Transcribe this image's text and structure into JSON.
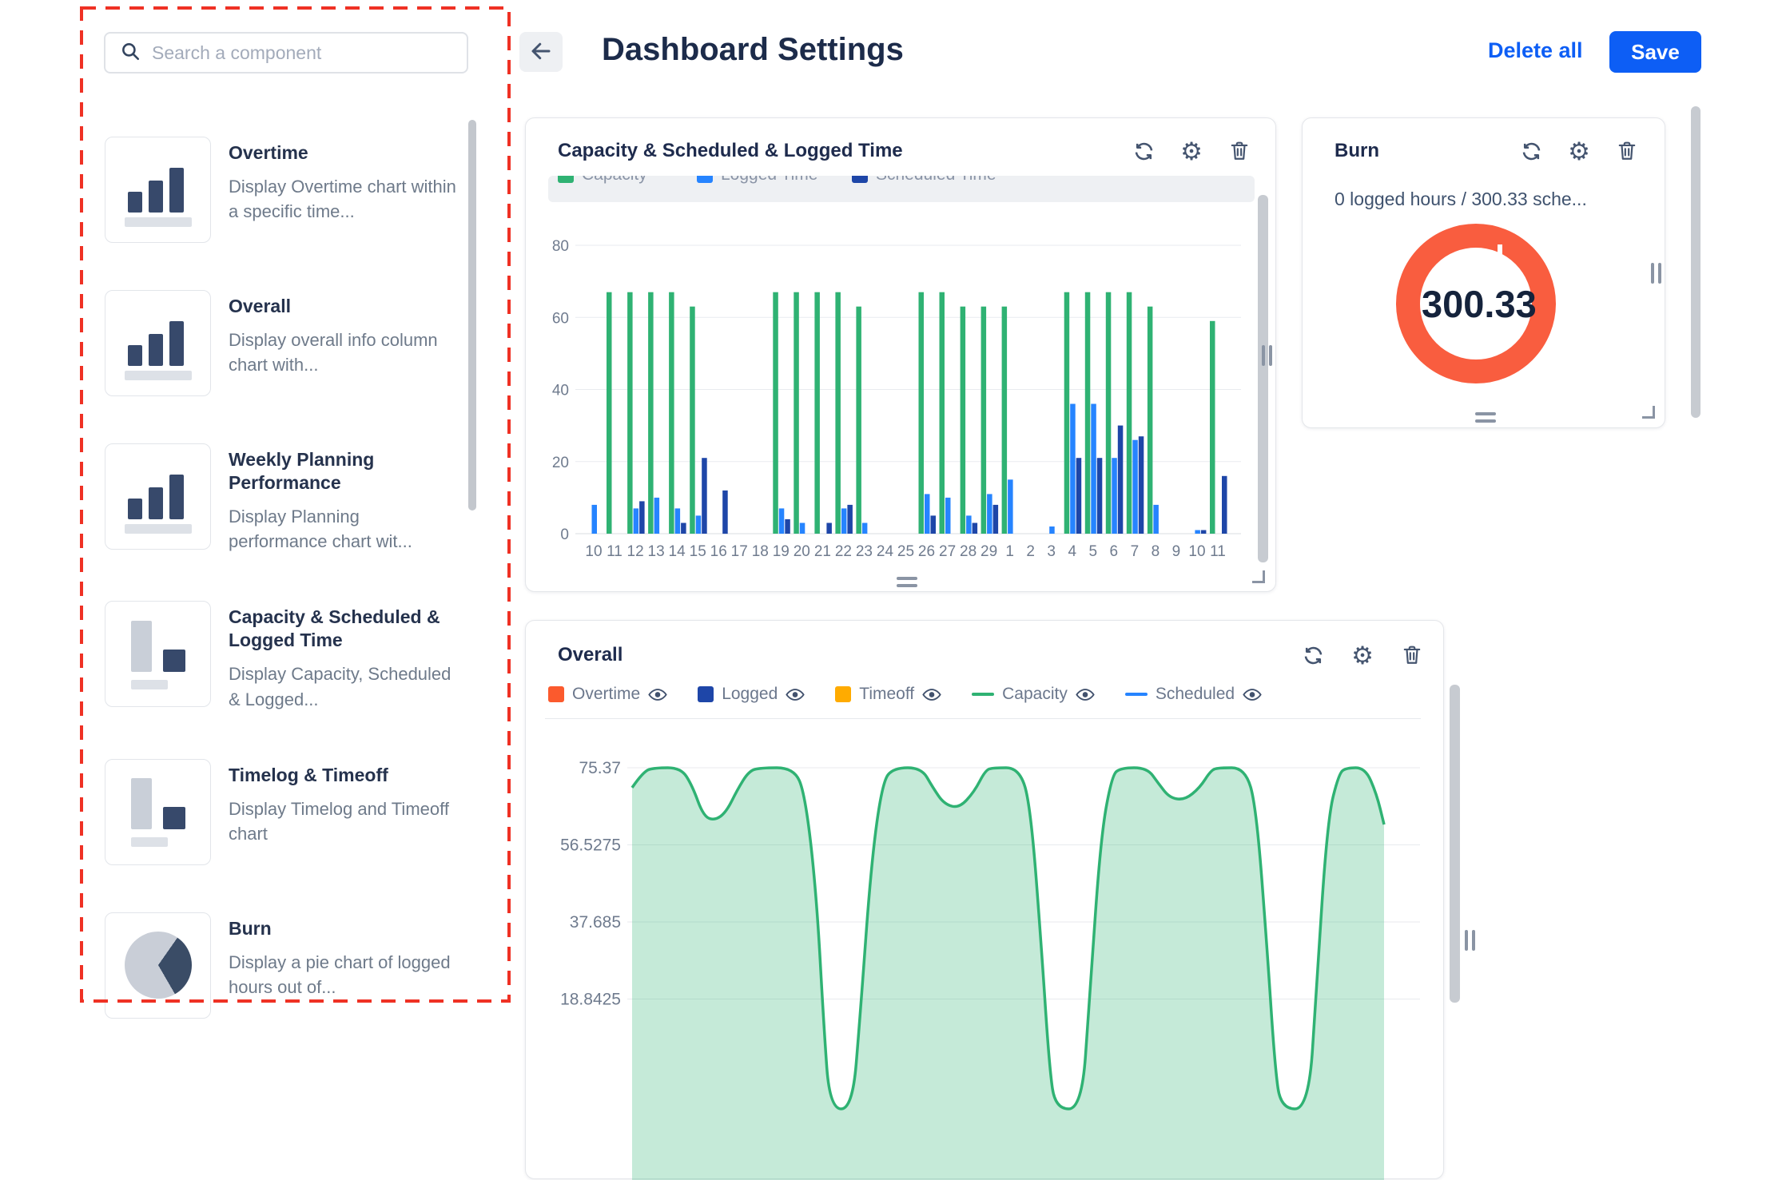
{
  "colors": {
    "accent_blue": "#0d5ef5",
    "capacity_green": "#2fb273",
    "logged_blue": "#2684ff",
    "scheduled_dark_blue": "#1e46a8",
    "overtime_orange": "#fb5a2d",
    "timeoff_yellow": "#ffab00",
    "burn_ring_orange": "#f95d3f",
    "annotation_red": "#ef3124"
  },
  "sidebar": {
    "search": {
      "placeholder": "Search a component"
    },
    "components": [
      {
        "name": "Overtime",
        "description": "Display Overtime chart within a specific time...",
        "icon": "bar-chart"
      },
      {
        "name": "Overall",
        "description": "Display overall info column chart with...",
        "icon": "bar-chart"
      },
      {
        "name": "Weekly Planning Performance",
        "description": "Display Planning performance chart wit...",
        "icon": "bar-chart"
      },
      {
        "name": "Capacity & Scheduled & Logged Time",
        "description": "Display Capacity, Scheduled & Logged...",
        "icon": "stacked-bar"
      },
      {
        "name": "Timelog & Timeoff",
        "description": "Display Timelog and Timeoff chart",
        "icon": "stacked-bar"
      },
      {
        "name": "Burn",
        "description": "Display a pie chart of logged hours out of...",
        "icon": "pie-chart"
      }
    ]
  },
  "header": {
    "title": "Dashboard Settings",
    "delete_all_label": "Delete all",
    "save_label": "Save"
  },
  "widgets": {
    "capacity": {
      "title": "Capacity & Scheduled & Logged Time"
    },
    "burn": {
      "title": "Burn",
      "subtitle": "0 logged hours / 300.33 sche...",
      "value": "300.33",
      "ring_color": "#f95d3f"
    },
    "overall": {
      "title": "Overall",
      "legend": [
        {
          "label": "Overtime",
          "color": "#fb5a2d",
          "type": "square"
        },
        {
          "label": "Logged",
          "color": "#1e46a8",
          "type": "square"
        },
        {
          "label": "Timeoff",
          "color": "#ffab00",
          "type": "square"
        },
        {
          "label": "Capacity",
          "color": "#2fb273",
          "type": "line"
        },
        {
          "label": "Scheduled",
          "color": "#2684ff",
          "type": "line"
        }
      ]
    }
  },
  "chart_data": [
    {
      "type": "bar",
      "title": "Capacity & Scheduled & Logged Time",
      "categories": [
        "10",
        "11",
        "12",
        "13",
        "14",
        "15",
        "16",
        "17",
        "18",
        "19",
        "20",
        "21",
        "22",
        "23",
        "24",
        "25",
        "26",
        "27",
        "28",
        "29",
        "1",
        "2",
        "3",
        "4",
        "5",
        "6",
        "7",
        "8",
        "9",
        "10",
        "11"
      ],
      "series": [
        {
          "name": "Capacity",
          "color": "#2fb273",
          "values": [
            0,
            67,
            67,
            67,
            67,
            63,
            0,
            0,
            0,
            67,
            67,
            67,
            67,
            63,
            0,
            0,
            67,
            67,
            63,
            63,
            63,
            0,
            0,
            67,
            67,
            67,
            67,
            63,
            0,
            0,
            59
          ]
        },
        {
          "name": "Logged Time",
          "color": "#2684ff",
          "values": [
            8,
            0,
            7,
            10,
            7,
            5,
            0,
            0,
            0,
            7,
            3,
            0,
            7,
            3,
            0,
            0,
            11,
            10,
            5,
            11,
            15,
            0,
            2,
            36,
            36,
            21,
            26,
            8,
            0,
            1,
            0
          ]
        },
        {
          "name": "Scheduled Time",
          "color": "#1e46a8",
          "values": [
            0,
            0,
            9,
            0,
            3,
            21,
            12,
            0,
            0,
            4,
            0,
            3,
            8,
            0,
            0,
            0,
            5,
            0,
            3,
            8,
            0,
            0,
            0,
            21,
            21,
            30,
            27,
            0,
            0,
            1,
            16
          ]
        }
      ],
      "yticks": [
        0,
        20,
        40,
        60,
        80
      ],
      "ylim": [
        0,
        88
      ],
      "grid": true
    },
    {
      "type": "area",
      "title": "Overall",
      "yticks": [
        {
          "label": "75.37",
          "value": 75.37
        },
        {
          "label": "56.5275",
          "value": 56.5275
        },
        {
          "label": "37.685",
          "value": 37.685
        },
        {
          "label": "18.8425",
          "value": 18.8425
        }
      ],
      "series": [
        {
          "name": "Capacity",
          "color": "#2fb273",
          "points": [
            [
              0,
              70.5
            ],
            [
              1.5,
              74.5
            ],
            [
              3,
              75.37
            ],
            [
              6.5,
              75.37
            ],
            [
              8,
              71
            ],
            [
              9.5,
              63.5
            ],
            [
              11,
              62.5
            ],
            [
              12.5,
              64.5
            ],
            [
              14,
              70
            ],
            [
              15.5,
              74.5
            ],
            [
              17,
              75.37
            ],
            [
              21.5,
              75.37
            ],
            [
              23,
              69
            ],
            [
              24.5,
              45
            ],
            [
              25.5,
              12
            ],
            [
              26.3,
              -8
            ],
            [
              29.3,
              -8
            ],
            [
              30.3,
              14
            ],
            [
              31.8,
              52
            ],
            [
              33.3,
              72
            ],
            [
              34.8,
              75.37
            ],
            [
              38.5,
              75.37
            ],
            [
              40,
              70.5
            ],
            [
              41.5,
              66.5
            ],
            [
              43.5,
              65.5
            ],
            [
              45.5,
              69.5
            ],
            [
              47,
              74.8
            ],
            [
              48,
              75.37
            ],
            [
              51.5,
              75.37
            ],
            [
              53,
              66
            ],
            [
              54.5,
              30
            ],
            [
              55.5,
              2
            ],
            [
              56.3,
              -8
            ],
            [
              59.8,
              -8
            ],
            [
              60.8,
              18
            ],
            [
              62.3,
              58
            ],
            [
              63.8,
              73.5
            ],
            [
              65,
              75.37
            ],
            [
              68.5,
              75.37
            ],
            [
              70,
              71.5
            ],
            [
              71.5,
              68
            ],
            [
              73.5,
              67.5
            ],
            [
              75.5,
              70.5
            ],
            [
              77,
              74.8
            ],
            [
              78,
              75.37
            ],
            [
              81.5,
              75.37
            ],
            [
              83,
              66
            ],
            [
              84.5,
              30
            ],
            [
              85.5,
              2
            ],
            [
              86.3,
              -8
            ],
            [
              90,
              -8
            ],
            [
              91,
              22
            ],
            [
              92.5,
              63
            ],
            [
              94,
              74
            ],
            [
              95,
              75.37
            ],
            [
              97.5,
              75.37
            ],
            [
              99,
              69
            ],
            [
              100,
              61.5
            ]
          ]
        }
      ],
      "grid": true
    }
  ]
}
